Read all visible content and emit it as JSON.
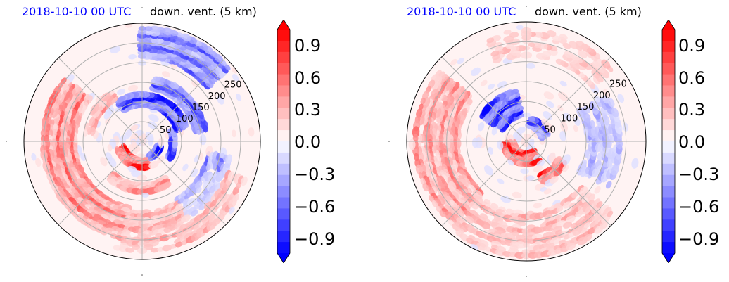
{
  "colors": {
    "positive": "#ff0000",
    "negative": "#0000ff",
    "neutral": "#ffffff",
    "grid": "#b0b0b0",
    "title_date": "#0000ff",
    "boundary": "#000000"
  },
  "chart_data": [
    {
      "type": "heatmap",
      "projection": "polar",
      "title_left": "2018-10-10 00 UTC",
      "title_right": "down. vent. (5 km)",
      "radial_ticks": [
        "50",
        "100",
        "150",
        "200",
        "250"
      ],
      "radial_values": [
        50,
        100,
        150,
        200,
        250
      ],
      "r_max": 300,
      "colorbar": {
        "ticks": [
          "0.9",
          "0.6",
          "0.3",
          "0.0",
          "−0.3",
          "−0.6",
          "−0.9"
        ],
        "tick_values": [
          0.9,
          0.6,
          0.3,
          0.0,
          -0.3,
          -0.6,
          -0.9
        ],
        "range": [
          -1.0,
          1.0
        ],
        "extend": "both",
        "levels": 21,
        "cmap": "bwr"
      },
      "grid": true
    },
    {
      "type": "heatmap",
      "projection": "polar",
      "title_left": "2018-10-10 00 UTC",
      "title_right": "down. vent. (5 km)",
      "radial_ticks": [
        "50",
        "100",
        "150",
        "200",
        "250"
      ],
      "radial_values": [
        50,
        100,
        150,
        200,
        250
      ],
      "r_max": 300,
      "colorbar": {
        "ticks": [
          "0.9",
          "0.6",
          "0.3",
          "0.0",
          "−0.3",
          "−0.6",
          "−0.9"
        ],
        "tick_values": [
          0.9,
          0.6,
          0.3,
          0.0,
          -0.3,
          -0.6,
          -0.9
        ],
        "range": [
          -1.0,
          1.0
        ],
        "extend": "both",
        "levels": 21,
        "cmap": "bwr"
      },
      "grid": true
    }
  ]
}
